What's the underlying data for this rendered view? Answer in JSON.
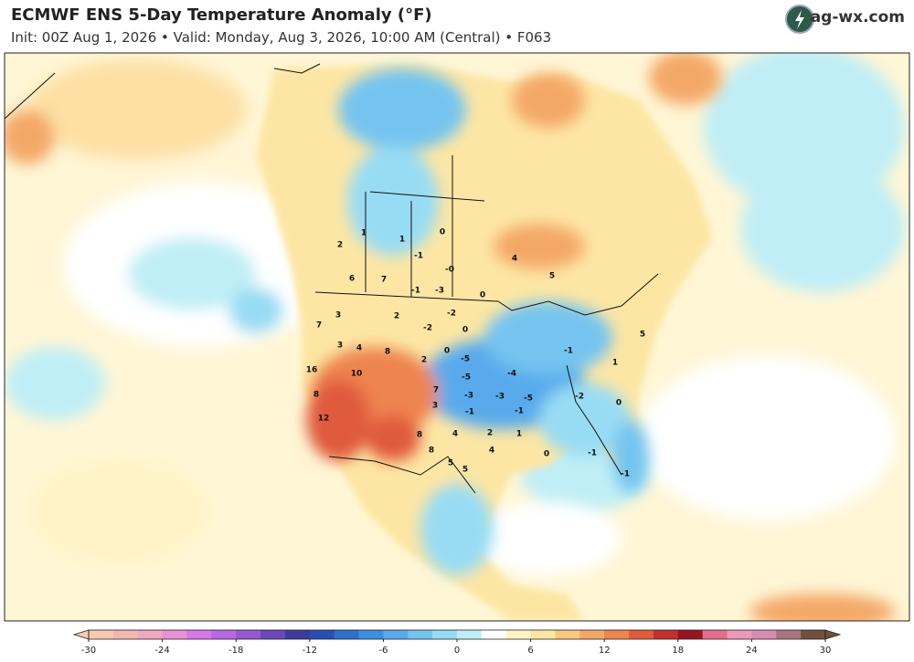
{
  "header": {
    "title": "ECMWF ENS 5-Day Temperature Anomaly (°F)",
    "subtitle": "Init: 00Z Aug 1, 2026  •  Valid: Monday, Aug 3, 2026, 10:00 AM (Central)  •  F063",
    "logo": "ag-wx.com"
  },
  "map_labels": [
    "2",
    "1",
    "6",
    "7",
    "1",
    "-1",
    "-1",
    "-3",
    "0",
    "-0",
    "0",
    "4",
    "5",
    "7",
    "3",
    "3",
    "4",
    "8",
    "2",
    "-2",
    "-2",
    "0",
    "0",
    "-5",
    "-5",
    "-3",
    "-3",
    "-4",
    "-5",
    "-1",
    "10",
    "16",
    "8",
    "12",
    "7",
    "3",
    "2",
    "-1",
    "4",
    "8",
    "8",
    "5",
    "5",
    "4",
    "2",
    "1",
    "0",
    "-1",
    "-1",
    "0",
    "-2",
    "1",
    "5",
    "-1"
  ],
  "colorbar": {
    "ticks": [
      -30,
      -24,
      -18,
      -12,
      -6,
      0,
      6,
      12,
      18,
      24,
      30
    ],
    "colors": [
      "#f6c9b0",
      "#f2b8b0",
      "#efa8c0",
      "#e890d8",
      "#d878e8",
      "#b868e0",
      "#9458d0",
      "#6a48b8",
      "#3c3c9c",
      "#2850b0",
      "#3070cc",
      "#3c8ee0",
      "#58aaec",
      "#74c4f0",
      "#98dcf4",
      "#c0eef6",
      "#ffffff",
      "#fff4c8",
      "#fde6a4",
      "#f8c880",
      "#f4a868",
      "#ee8450",
      "#e05a3c",
      "#c0302c",
      "#98141e",
      "#e46c8c",
      "#ee98b8",
      "#d88cb0",
      "#a87480",
      "#70503c"
    ]
  }
}
